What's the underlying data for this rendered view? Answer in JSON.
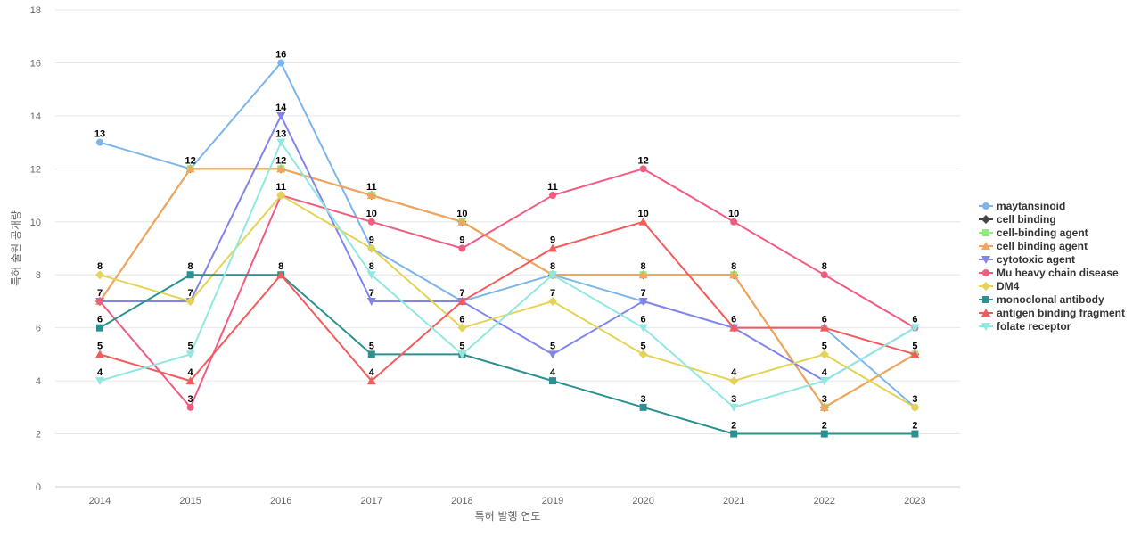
{
  "chart_data": {
    "type": "line",
    "title": "",
    "xlabel": "특허 발행 연도",
    "ylabel": "특허 출원 공개량",
    "x": [
      "2014",
      "2015",
      "2016",
      "2017",
      "2018",
      "2019",
      "2020",
      "2021",
      "2022",
      "2023"
    ],
    "ylim": [
      0,
      18
    ],
    "yticks": [
      0,
      2,
      4,
      6,
      8,
      10,
      12,
      14,
      16,
      18
    ],
    "grid": true,
    "legend_position": "right",
    "series": [
      {
        "name": "maytansinoid",
        "color": "#7cb5ec",
        "marker": "circle",
        "values": [
          13,
          12,
          16,
          9,
          7,
          8,
          7,
          6,
          6,
          3
        ]
      },
      {
        "name": "cell binding",
        "color": "#434348",
        "marker": "diamond",
        "values": [
          7,
          12,
          12,
          11,
          10,
          8,
          8,
          8,
          3,
          5
        ]
      },
      {
        "name": "cell-binding agent",
        "color": "#90ed7d",
        "marker": "square",
        "values": [
          7,
          12,
          12,
          11,
          10,
          8,
          8,
          8,
          3,
          5
        ]
      },
      {
        "name": "cell binding agent",
        "color": "#f7a35c",
        "marker": "triangle",
        "values": [
          7,
          12,
          12,
          11,
          10,
          8,
          8,
          8,
          3,
          5
        ]
      },
      {
        "name": "cytotoxic agent",
        "color": "#8085e9",
        "marker": "triangle-down",
        "values": [
          7,
          7,
          14,
          7,
          7,
          5,
          7,
          6,
          4,
          6
        ]
      },
      {
        "name": "Mu heavy chain disease",
        "color": "#f15c80",
        "marker": "circle",
        "values": [
          7,
          3,
          11,
          10,
          9,
          11,
          12,
          10,
          8,
          6
        ]
      },
      {
        "name": "DM4",
        "color": "#e4d354",
        "marker": "diamond",
        "values": [
          8,
          7,
          11,
          9,
          6,
          7,
          5,
          4,
          5,
          3
        ]
      },
      {
        "name": "monoclonal antibody",
        "color": "#2b908f",
        "marker": "square",
        "values": [
          6,
          8,
          8,
          5,
          5,
          4,
          3,
          2,
          2,
          2
        ]
      },
      {
        "name": "antigen binding fragment",
        "color": "#f45b5b",
        "marker": "triangle",
        "values": [
          5,
          4,
          8,
          4,
          7,
          9,
          10,
          6,
          6,
          5
        ]
      },
      {
        "name": "folate receptor",
        "color": "#91e8e1",
        "marker": "triangle-down",
        "values": [
          4,
          5,
          13,
          8,
          5,
          8,
          6,
          3,
          4,
          6
        ]
      }
    ],
    "data_labels": [
      {
        "x": "2014",
        "values": [
          13,
          7,
          8,
          6,
          5,
          4
        ]
      },
      {
        "x": "2015",
        "values": [
          12,
          7,
          8,
          5,
          4,
          3
        ]
      },
      {
        "x": "2016",
        "values": [
          16,
          14,
          13,
          12,
          11,
          8
        ]
      },
      {
        "x": "2017",
        "values": [
          11,
          10,
          9,
          8,
          7,
          5,
          4
        ]
      },
      {
        "x": "2018",
        "values": [
          10,
          9,
          7,
          6,
          5
        ]
      },
      {
        "x": "2019",
        "values": [
          11,
          9,
          8,
          7,
          5,
          4
        ]
      },
      {
        "x": "2020",
        "values": [
          12,
          10,
          8,
          7,
          6,
          5,
          3
        ]
      },
      {
        "x": "2021",
        "values": [
          10,
          8,
          6,
          4,
          3,
          2
        ]
      },
      {
        "x": "2022",
        "values": [
          8,
          6,
          5,
          4,
          3,
          2
        ]
      },
      {
        "x": "2023",
        "values": [
          6,
          5,
          3,
          2
        ]
      }
    ]
  }
}
